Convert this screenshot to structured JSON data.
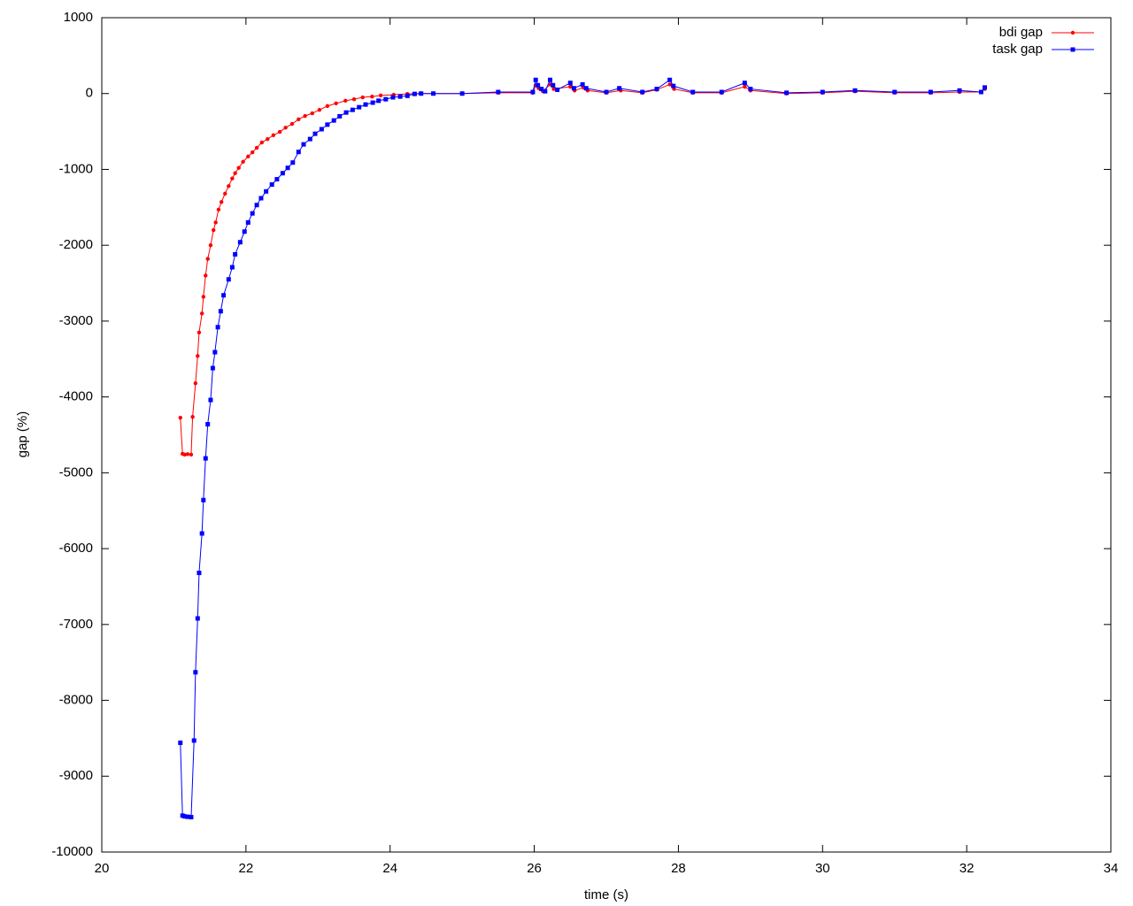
{
  "chart_data": {
    "type": "line",
    "xlabel": "time (s)",
    "ylabel": "gap (%)",
    "xlim": [
      20,
      34
    ],
    "xticks": [
      20,
      22,
      24,
      26,
      28,
      30,
      32,
      34
    ],
    "ylim": [
      -10000,
      1000
    ],
    "yticks": [
      -10000,
      -9000,
      -8000,
      -7000,
      -6000,
      -5000,
      -4000,
      -3000,
      -2000,
      -1000,
      0,
      1000
    ],
    "legend": "top-right",
    "series": [
      {
        "name": "bdi gap",
        "color": "#ff0000",
        "marker": "circle",
        "x": [
          21.09,
          21.12,
          21.15,
          21.19,
          21.24,
          21.26,
          21.3,
          21.33,
          21.35,
          21.39,
          21.41,
          21.44,
          21.47,
          21.51,
          21.55,
          21.58,
          21.62,
          21.66,
          21.71,
          21.76,
          21.81,
          21.85,
          21.9,
          21.96,
          22.03,
          22.09,
          22.15,
          22.22,
          22.3,
          22.38,
          22.47,
          22.55,
          22.64,
          22.73,
          22.82,
          22.92,
          23.02,
          23.13,
          23.25,
          23.38,
          23.5,
          23.62,
          23.75,
          23.87,
          24.05,
          24.24,
          24.42,
          24.6,
          25.0,
          25.5,
          25.98,
          26.02,
          26.06,
          26.12,
          26.22,
          26.27,
          26.5,
          26.56,
          26.68,
          26.74,
          27.0,
          27.2,
          27.5,
          27.7,
          27.88,
          27.94,
          28.2,
          28.6,
          28.92,
          29.0,
          29.5,
          30.0,
          30.45,
          31.0,
          31.5,
          31.9,
          32.2,
          32.25
        ],
        "values": [
          -4274,
          -4750,
          -4760,
          -4755,
          -4760,
          -4263,
          -3820,
          -3460,
          -3150,
          -2900,
          -2680,
          -2400,
          -2180,
          -2000,
          -1800,
          -1700,
          -1530,
          -1430,
          -1320,
          -1220,
          -1120,
          -1050,
          -980,
          -900,
          -830,
          -775,
          -715,
          -645,
          -600,
          -550,
          -505,
          -450,
          -400,
          -340,
          -295,
          -260,
          -215,
          -165,
          -130,
          -95,
          -75,
          -50,
          -40,
          -25,
          -15,
          -5,
          0,
          0,
          0,
          10,
          10,
          110,
          70,
          30,
          120,
          60,
          90,
          40,
          80,
          40,
          10,
          40,
          10,
          50,
          120,
          60,
          10,
          10,
          90,
          40,
          0,
          10,
          30,
          10,
          10,
          20,
          20,
          60
        ]
      },
      {
        "name": "task gap",
        "color": "#0000ff",
        "marker": "square",
        "x": [
          21.09,
          21.12,
          21.15,
          21.19,
          21.24,
          21.28,
          21.3,
          21.33,
          21.35,
          21.39,
          21.41,
          21.44,
          21.47,
          21.51,
          21.54,
          21.57,
          21.61,
          21.65,
          21.69,
          21.76,
          21.81,
          21.85,
          21.92,
          21.98,
          22.03,
          22.09,
          22.15,
          22.21,
          22.28,
          22.36,
          22.43,
          22.51,
          22.58,
          22.65,
          22.73,
          22.8,
          22.89,
          22.96,
          23.05,
          23.13,
          23.22,
          23.3,
          23.39,
          23.48,
          23.57,
          23.66,
          23.76,
          23.84,
          23.94,
          24.04,
          24.14,
          24.24,
          24.34,
          24.43,
          24.6,
          25.0,
          25.5,
          25.98,
          26.02,
          26.05,
          26.1,
          26.15,
          26.22,
          26.26,
          26.32,
          26.5,
          26.55,
          26.67,
          26.72,
          27.0,
          27.18,
          27.5,
          27.7,
          27.88,
          27.93,
          28.2,
          28.6,
          28.92,
          29.0,
          29.5,
          30.0,
          30.45,
          31.0,
          31.5,
          31.9,
          32.2,
          32.25
        ],
        "values": [
          -8560,
          -9520,
          -9530,
          -9535,
          -9540,
          -8530,
          -7630,
          -6920,
          -6320,
          -5800,
          -5360,
          -4810,
          -4360,
          -4040,
          -3620,
          -3410,
          -3080,
          -2870,
          -2660,
          -2450,
          -2290,
          -2120,
          -1960,
          -1820,
          -1700,
          -1580,
          -1470,
          -1380,
          -1290,
          -1200,
          -1130,
          -1050,
          -980,
          -910,
          -770,
          -670,
          -600,
          -530,
          -470,
          -410,
          -355,
          -300,
          -250,
          -215,
          -180,
          -145,
          -120,
          -95,
          -75,
          -50,
          -40,
          -30,
          -5,
          0,
          0,
          0,
          20,
          20,
          180,
          110,
          60,
          30,
          180,
          110,
          50,
          140,
          70,
          120,
          70,
          20,
          70,
          20,
          60,
          180,
          100,
          20,
          20,
          140,
          60,
          10,
          20,
          40,
          20,
          20,
          40,
          20,
          80
        ]
      }
    ]
  }
}
